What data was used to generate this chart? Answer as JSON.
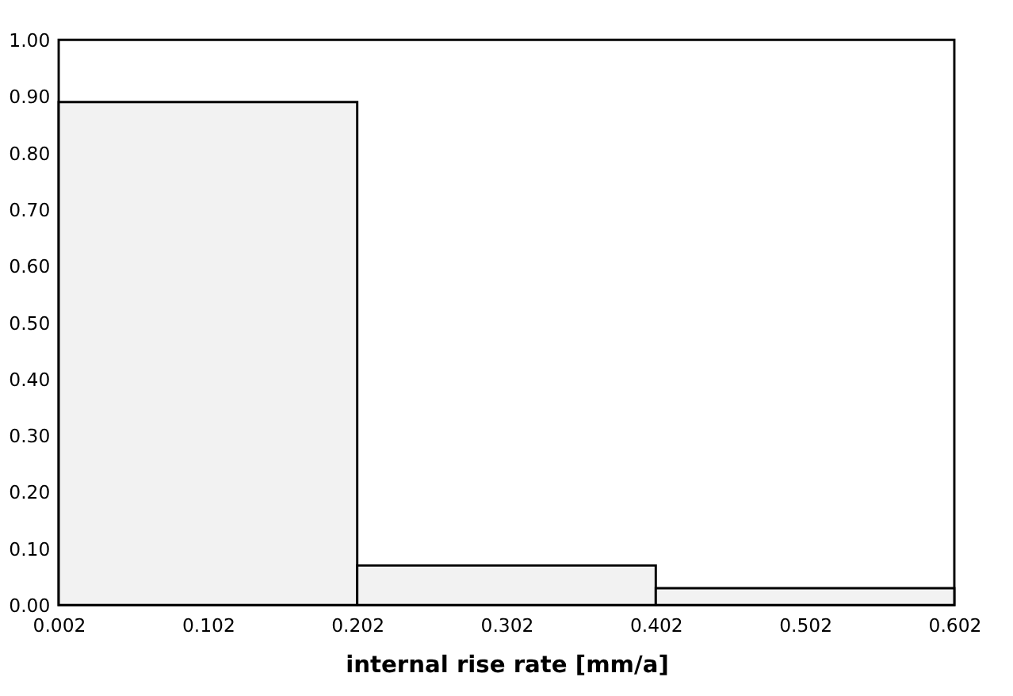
{
  "chart_data": {
    "type": "histogram",
    "xlabel": "internal rise rate [mm/a]",
    "bins": [
      0.002,
      0.202,
      0.402,
      0.602
    ],
    "values": [
      0.89,
      0.07,
      0.03
    ],
    "color": "#f2f2f2",
    "xlim": [
      0.002,
      0.602
    ],
    "xticks": [
      0.002,
      0.102,
      0.202,
      0.302,
      0.402,
      0.502,
      0.602
    ],
    "ylim": [
      0,
      1
    ],
    "yticks": [
      {
        "value": 0,
        "label": "0.00"
      },
      {
        "value": 0.1,
        "label": "0.10"
      },
      {
        "value": 0.2,
        "label": "0.20"
      },
      {
        "value": 0.3,
        "label": "0.30"
      },
      {
        "value": 0.4,
        "label": "0.40"
      },
      {
        "value": 0.5,
        "label": "0.50"
      },
      {
        "value": 0.6,
        "label": "0.60"
      },
      {
        "value": 0.7,
        "label": "0.70"
      },
      {
        "value": 0.8,
        "label": "0.80"
      },
      {
        "value": 0.9,
        "label": "0.90"
      },
      {
        "value": 1,
        "label": "1.00"
      }
    ],
    "grid": false
  }
}
